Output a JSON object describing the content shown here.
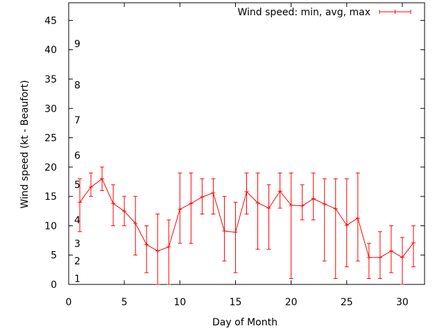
{
  "chart_data": {
    "type": "line",
    "xlabel": "Day of Month",
    "ylabel": "Wind speed (kt - Beaufort)",
    "xlim": [
      0,
      32
    ],
    "ylim": [
      0,
      48
    ],
    "xticks": [
      0,
      5,
      10,
      15,
      20,
      25,
      30
    ],
    "yticks": [
      0,
      5,
      10,
      15,
      20,
      25,
      30,
      35,
      40,
      45
    ],
    "grid": false,
    "legend_position": "top-right",
    "series_color": "#ff0000",
    "beaufort_scale": [
      {
        "label": "1",
        "y": 1
      },
      {
        "label": "2",
        "y": 4
      },
      {
        "label": "3",
        "y": 7
      },
      {
        "label": "4",
        "y": 11
      },
      {
        "label": "5",
        "y": 17
      },
      {
        "label": "6",
        "y": 22
      },
      {
        "label": "7",
        "y": 28
      },
      {
        "label": "8",
        "y": 34
      },
      {
        "label": "9",
        "y": 41
      }
    ],
    "series": [
      {
        "name": "Wind speed: min, avg, max",
        "x": [
          1,
          2,
          3,
          4,
          5,
          6,
          7,
          8,
          9,
          10,
          11,
          12,
          13,
          14,
          15,
          16,
          17,
          18,
          19,
          20,
          21,
          22,
          23,
          24,
          25,
          26,
          27,
          28,
          29,
          30,
          31
        ],
        "avg": [
          14.0,
          16.6,
          18.0,
          13.8,
          12.5,
          10.4,
          6.8,
          5.7,
          6.4,
          12.8,
          13.8,
          14.9,
          15.6,
          9.1,
          8.9,
          15.8,
          13.9,
          13.0,
          15.9,
          13.5,
          13.4,
          14.6,
          13.7,
          12.9,
          10.1,
          11.3,
          4.6,
          4.6,
          5.7,
          4.6,
          7.1
        ],
        "min": [
          9,
          15,
          16,
          10,
          10,
          5,
          2,
          0,
          0,
          7,
          7,
          12,
          12,
          4,
          2,
          12,
          6,
          6,
          13,
          1,
          11,
          11,
          4,
          1,
          3,
          4,
          1,
          1,
          2,
          0,
          3
        ],
        "max": [
          18,
          19,
          20,
          17,
          15,
          15,
          10,
          12,
          11,
          19,
          19,
          18,
          18,
          15,
          14,
          19,
          19,
          17,
          19,
          19,
          17,
          19,
          18,
          18,
          18,
          19,
          7,
          9,
          10,
          8,
          10
        ]
      }
    ]
  }
}
